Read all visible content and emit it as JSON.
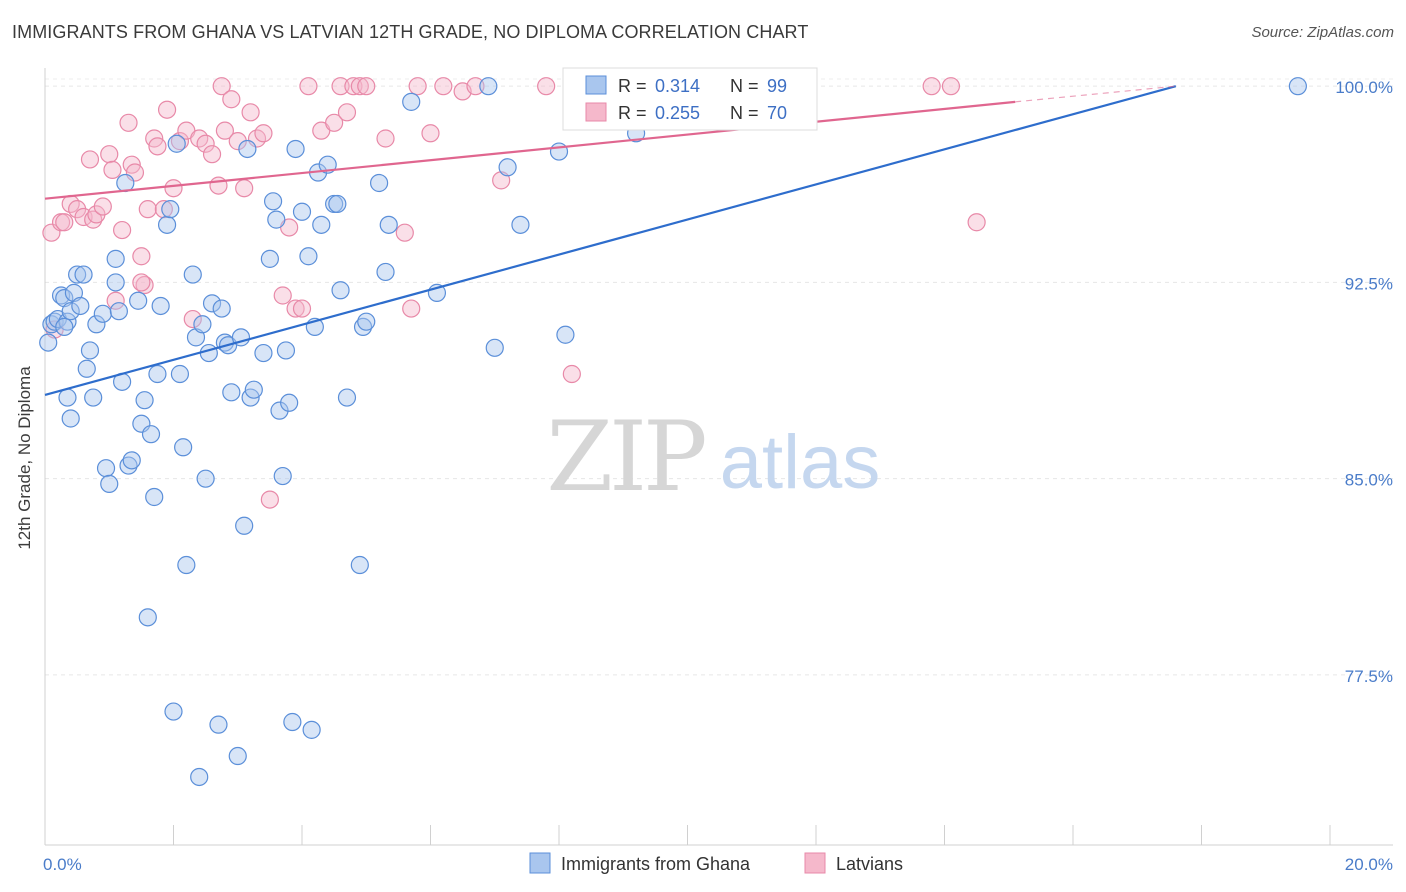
{
  "title": "IMMIGRANTS FROM GHANA VS LATVIAN 12TH GRADE, NO DIPLOMA CORRELATION CHART",
  "source": "Source: ZipAtlas.com",
  "watermark": {
    "zip": "ZIP",
    "atlas": "atlas"
  },
  "colors": {
    "blue": "#5b8fd9",
    "blue_fill": "#a9c6ee",
    "blue_line": "#2e6dcc",
    "pink": "#e889a8",
    "pink_fill": "#f5b8cb",
    "pink_line": "#e0668f"
  },
  "chart_data": {
    "type": "scatter",
    "title": "IMMIGRANTS FROM GHANA VS LATVIAN 12TH GRADE, NO DIPLOMA CORRELATION CHART",
    "xlabel": "",
    "ylabel": "12th Grade, No Diploma",
    "xlim": [
      0,
      20
    ],
    "ylim": [
      71,
      101
    ],
    "x_ticks": [
      "0.0%",
      "20.0%"
    ],
    "y_ticks": [
      {
        "value": 100,
        "label": "100.0%"
      },
      {
        "value": 92.5,
        "label": "92.5%"
      },
      {
        "value": 85,
        "label": "85.0%"
      },
      {
        "value": 77.5,
        "label": "77.5%"
      }
    ],
    "legend": [
      {
        "name": "Immigrants from Ghana",
        "r_label": "R =",
        "r": "0.314",
        "n_label": "N =",
        "n": "99"
      },
      {
        "name": "Latvians",
        "r_label": "R =",
        "r": "0.255",
        "n_label": "N =",
        "n": "70"
      }
    ],
    "series": [
      {
        "name": "Immigrants from Ghana",
        "trend": {
          "x": [
            0,
            17.6
          ],
          "y": [
            88.2,
            100
          ]
        },
        "points": [
          [
            0.05,
            90.2
          ],
          [
            0.1,
            90.9
          ],
          [
            0.15,
            91.0
          ],
          [
            0.2,
            91.1
          ],
          [
            0.25,
            92.0
          ],
          [
            0.3,
            91.9
          ],
          [
            0.35,
            91.0
          ],
          [
            0.4,
            91.4
          ],
          [
            0.45,
            92.1
          ],
          [
            0.5,
            92.8
          ],
          [
            0.6,
            92.8
          ],
          [
            0.65,
            89.2
          ],
          [
            0.7,
            89.9
          ],
          [
            0.75,
            88.1
          ],
          [
            0.35,
            88.1
          ],
          [
            0.4,
            87.3
          ],
          [
            0.8,
            90.9
          ],
          [
            0.9,
            91.3
          ],
          [
            0.95,
            85.4
          ],
          [
            1.0,
            84.8
          ],
          [
            1.1,
            93.4
          ],
          [
            1.15,
            91.4
          ],
          [
            1.2,
            88.7
          ],
          [
            1.3,
            85.5
          ],
          [
            1.35,
            85.7
          ],
          [
            1.45,
            91.8
          ],
          [
            1.5,
            87.1
          ],
          [
            1.55,
            88.0
          ],
          [
            1.6,
            79.7
          ],
          [
            1.65,
            86.7
          ],
          [
            1.7,
            84.3
          ],
          [
            1.75,
            89.0
          ],
          [
            1.8,
            91.6
          ],
          [
            1.9,
            94.7
          ],
          [
            1.95,
            95.3
          ],
          [
            2.0,
            76.1
          ],
          [
            2.1,
            89.0
          ],
          [
            2.15,
            86.2
          ],
          [
            2.2,
            81.7
          ],
          [
            2.3,
            92.8
          ],
          [
            2.35,
            90.4
          ],
          [
            2.4,
            73.6
          ],
          [
            2.45,
            90.9
          ],
          [
            2.5,
            85.0
          ],
          [
            2.55,
            89.8
          ],
          [
            2.6,
            91.7
          ],
          [
            2.7,
            75.6
          ],
          [
            2.75,
            91.5
          ],
          [
            2.8,
            90.2
          ],
          [
            2.85,
            90.1
          ],
          [
            2.9,
            88.3
          ],
          [
            3.0,
            74.4
          ],
          [
            3.05,
            90.4
          ],
          [
            3.1,
            83.2
          ],
          [
            3.15,
            97.6
          ],
          [
            3.2,
            88.1
          ],
          [
            3.25,
            88.4
          ],
          [
            3.4,
            89.8
          ],
          [
            3.5,
            93.4
          ],
          [
            3.55,
            95.6
          ],
          [
            3.6,
            94.9
          ],
          [
            3.65,
            87.6
          ],
          [
            3.7,
            85.1
          ],
          [
            3.75,
            89.9
          ],
          [
            3.8,
            87.9
          ],
          [
            3.85,
            75.7
          ],
          [
            3.9,
            97.6
          ],
          [
            4.0,
            95.2
          ],
          [
            4.1,
            93.5
          ],
          [
            4.15,
            75.4
          ],
          [
            4.2,
            90.8
          ],
          [
            4.25,
            96.7
          ],
          [
            4.3,
            94.7
          ],
          [
            4.4,
            97.0
          ],
          [
            4.5,
            95.5
          ],
          [
            4.55,
            95.5
          ],
          [
            4.6,
            92.2
          ],
          [
            4.7,
            88.1
          ],
          [
            4.9,
            81.7
          ],
          [
            4.95,
            90.8
          ],
          [
            5.0,
            91.0
          ],
          [
            5.2,
            96.3
          ],
          [
            5.3,
            92.9
          ],
          [
            5.35,
            94.7
          ],
          [
            5.7,
            99.4
          ],
          [
            6.1,
            92.1
          ],
          [
            7.0,
            90.0
          ],
          [
            6.9,
            100.0
          ],
          [
            7.2,
            96.9
          ],
          [
            7.4,
            94.7
          ],
          [
            8.0,
            97.5
          ],
          [
            8.1,
            90.5
          ],
          [
            9.2,
            98.2
          ],
          [
            19.5,
            100.0
          ],
          [
            1.1,
            92.5
          ],
          [
            0.55,
            91.6
          ],
          [
            0.3,
            90.8
          ],
          [
            1.25,
            96.3
          ],
          [
            2.05,
            97.8
          ]
        ]
      },
      {
        "name": "Latvians",
        "trend": {
          "x": [
            0,
            15.1
          ],
          "y": [
            95.7,
            99.4
          ]
        },
        "trend_dashed": {
          "x": [
            15.1,
            17.6
          ],
          "y": [
            99.4,
            100
          ]
        },
        "points": [
          [
            0.1,
            94.4
          ],
          [
            0.15,
            90.7
          ],
          [
            0.25,
            94.8
          ],
          [
            0.3,
            94.8
          ],
          [
            0.4,
            95.5
          ],
          [
            0.5,
            95.3
          ],
          [
            0.6,
            95.0
          ],
          [
            0.7,
            97.2
          ],
          [
            0.75,
            94.9
          ],
          [
            0.8,
            95.1
          ],
          [
            0.9,
            95.4
          ],
          [
            1.0,
            97.4
          ],
          [
            1.05,
            96.8
          ],
          [
            1.1,
            91.8
          ],
          [
            1.2,
            94.5
          ],
          [
            1.3,
            98.6
          ],
          [
            1.35,
            97.0
          ],
          [
            1.4,
            96.7
          ],
          [
            1.5,
            93.5
          ],
          [
            1.55,
            92.4
          ],
          [
            1.6,
            95.3
          ],
          [
            1.7,
            98.0
          ],
          [
            1.75,
            97.7
          ],
          [
            1.85,
            95.3
          ],
          [
            1.9,
            99.1
          ],
          [
            2.0,
            96.1
          ],
          [
            2.1,
            97.9
          ],
          [
            2.2,
            98.3
          ],
          [
            2.3,
            91.1
          ],
          [
            2.4,
            98.0
          ],
          [
            2.5,
            97.8
          ],
          [
            2.6,
            97.4
          ],
          [
            2.7,
            96.2
          ],
          [
            2.75,
            100.0
          ],
          [
            2.8,
            98.3
          ],
          [
            2.9,
            99.5
          ],
          [
            3.0,
            97.9
          ],
          [
            3.1,
            96.1
          ],
          [
            3.2,
            99.0
          ],
          [
            3.3,
            98.0
          ],
          [
            3.4,
            98.2
          ],
          [
            3.5,
            84.2
          ],
          [
            3.7,
            92.0
          ],
          [
            3.8,
            94.6
          ],
          [
            3.9,
            91.5
          ],
          [
            4.0,
            91.5
          ],
          [
            4.1,
            100.0
          ],
          [
            4.3,
            98.3
          ],
          [
            4.5,
            98.6
          ],
          [
            4.6,
            100.0
          ],
          [
            4.7,
            99.0
          ],
          [
            4.8,
            100.0
          ],
          [
            4.9,
            100.0
          ],
          [
            5.0,
            100.0
          ],
          [
            5.3,
            98.0
          ],
          [
            5.6,
            94.4
          ],
          [
            5.7,
            91.5
          ],
          [
            5.8,
            100.0
          ],
          [
            6.0,
            98.2
          ],
          [
            6.2,
            100.0
          ],
          [
            6.5,
            99.8
          ],
          [
            6.7,
            100.0
          ],
          [
            7.1,
            96.4
          ],
          [
            7.8,
            100.0
          ],
          [
            8.2,
            89.0
          ],
          [
            10.8,
            100.0
          ],
          [
            13.8,
            100.0
          ],
          [
            14.1,
            100.0
          ],
          [
            14.5,
            94.8
          ],
          [
            1.5,
            92.5
          ]
        ]
      }
    ]
  }
}
